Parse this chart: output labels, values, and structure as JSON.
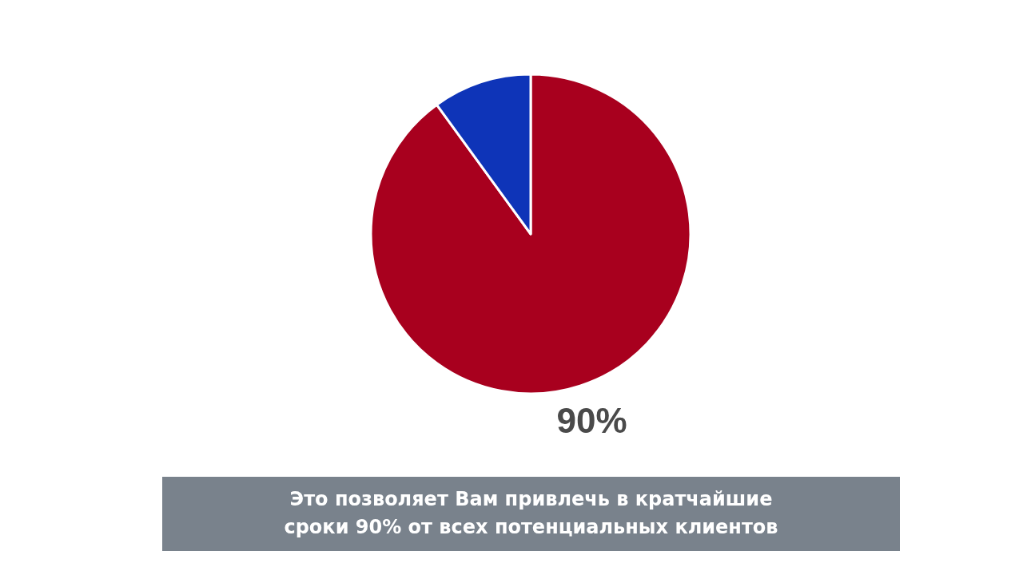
{
  "chart_data": {
    "type": "pie",
    "categories": [
      null,
      null
    ],
    "values": [
      90,
      10
    ],
    "colors": [
      "#a8001e",
      "#0e34b8"
    ],
    "value_labels": [
      "90%",
      null
    ],
    "annotations": [
      "Это позволяет Вам привлечь в кратчайшие\nсроки 90% от всех потенциальных клиентов"
    ]
  }
}
